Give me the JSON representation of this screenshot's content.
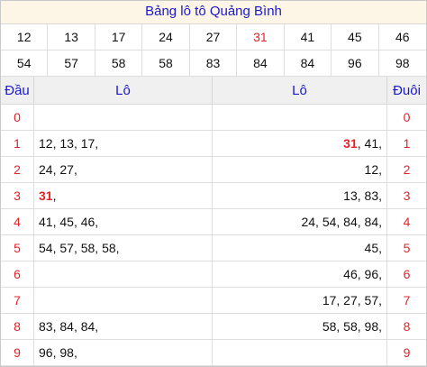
{
  "title": "Bảng lô tô Quảng Bình",
  "numbers": [
    {
      "v": "12",
      "red": false
    },
    {
      "v": "13",
      "red": false
    },
    {
      "v": "17",
      "red": false
    },
    {
      "v": "24",
      "red": false
    },
    {
      "v": "27",
      "red": false
    },
    {
      "v": "31",
      "red": true
    },
    {
      "v": "41",
      "red": false
    },
    {
      "v": "45",
      "red": false
    },
    {
      "v": "46",
      "red": false
    },
    {
      "v": "54",
      "red": false
    },
    {
      "v": "57",
      "red": false
    },
    {
      "v": "58",
      "red": false
    },
    {
      "v": "58",
      "red": false
    },
    {
      "v": "83",
      "red": false
    },
    {
      "v": "84",
      "red": false
    },
    {
      "v": "84",
      "red": false
    },
    {
      "v": "96",
      "red": false
    },
    {
      "v": "98",
      "red": false
    }
  ],
  "headers": {
    "dau": "Đầu",
    "lo_left": "Lô",
    "lo_right": "Lô",
    "duoi": "Đuôi"
  },
  "rows": [
    {
      "dau": "0",
      "left": [],
      "right": [],
      "duoi": "0"
    },
    {
      "dau": "1",
      "left": [
        {
          "v": "12"
        },
        {
          "v": "13"
        },
        {
          "v": "17"
        }
      ],
      "right": [
        {
          "v": "31",
          "hl": true
        },
        {
          "v": "41"
        }
      ],
      "duoi": "1"
    },
    {
      "dau": "2",
      "left": [
        {
          "v": "24"
        },
        {
          "v": "27"
        }
      ],
      "right": [
        {
          "v": "12"
        }
      ],
      "duoi": "2"
    },
    {
      "dau": "3",
      "left": [
        {
          "v": "31",
          "hl": true
        }
      ],
      "right": [
        {
          "v": "13"
        },
        {
          "v": "83"
        }
      ],
      "duoi": "3"
    },
    {
      "dau": "4",
      "left": [
        {
          "v": "41"
        },
        {
          "v": "45"
        },
        {
          "v": "46"
        }
      ],
      "right": [
        {
          "v": "24"
        },
        {
          "v": "54"
        },
        {
          "v": "84"
        },
        {
          "v": "84"
        }
      ],
      "duoi": "4"
    },
    {
      "dau": "5",
      "left": [
        {
          "v": "54"
        },
        {
          "v": "57"
        },
        {
          "v": "58"
        },
        {
          "v": "58"
        }
      ],
      "right": [
        {
          "v": "45"
        }
      ],
      "duoi": "5"
    },
    {
      "dau": "6",
      "left": [],
      "right": [
        {
          "v": "46"
        },
        {
          "v": "96"
        }
      ],
      "duoi": "6"
    },
    {
      "dau": "7",
      "left": [],
      "right": [
        {
          "v": "17"
        },
        {
          "v": "27"
        },
        {
          "v": "57"
        }
      ],
      "duoi": "7"
    },
    {
      "dau": "8",
      "left": [
        {
          "v": "83"
        },
        {
          "v": "84"
        },
        {
          "v": "84"
        }
      ],
      "right": [
        {
          "v": "58"
        },
        {
          "v": "58"
        },
        {
          "v": "98"
        }
      ],
      "duoi": "8"
    },
    {
      "dau": "9",
      "left": [
        {
          "v": "96"
        },
        {
          "v": "98"
        }
      ],
      "right": [],
      "duoi": "9"
    }
  ]
}
